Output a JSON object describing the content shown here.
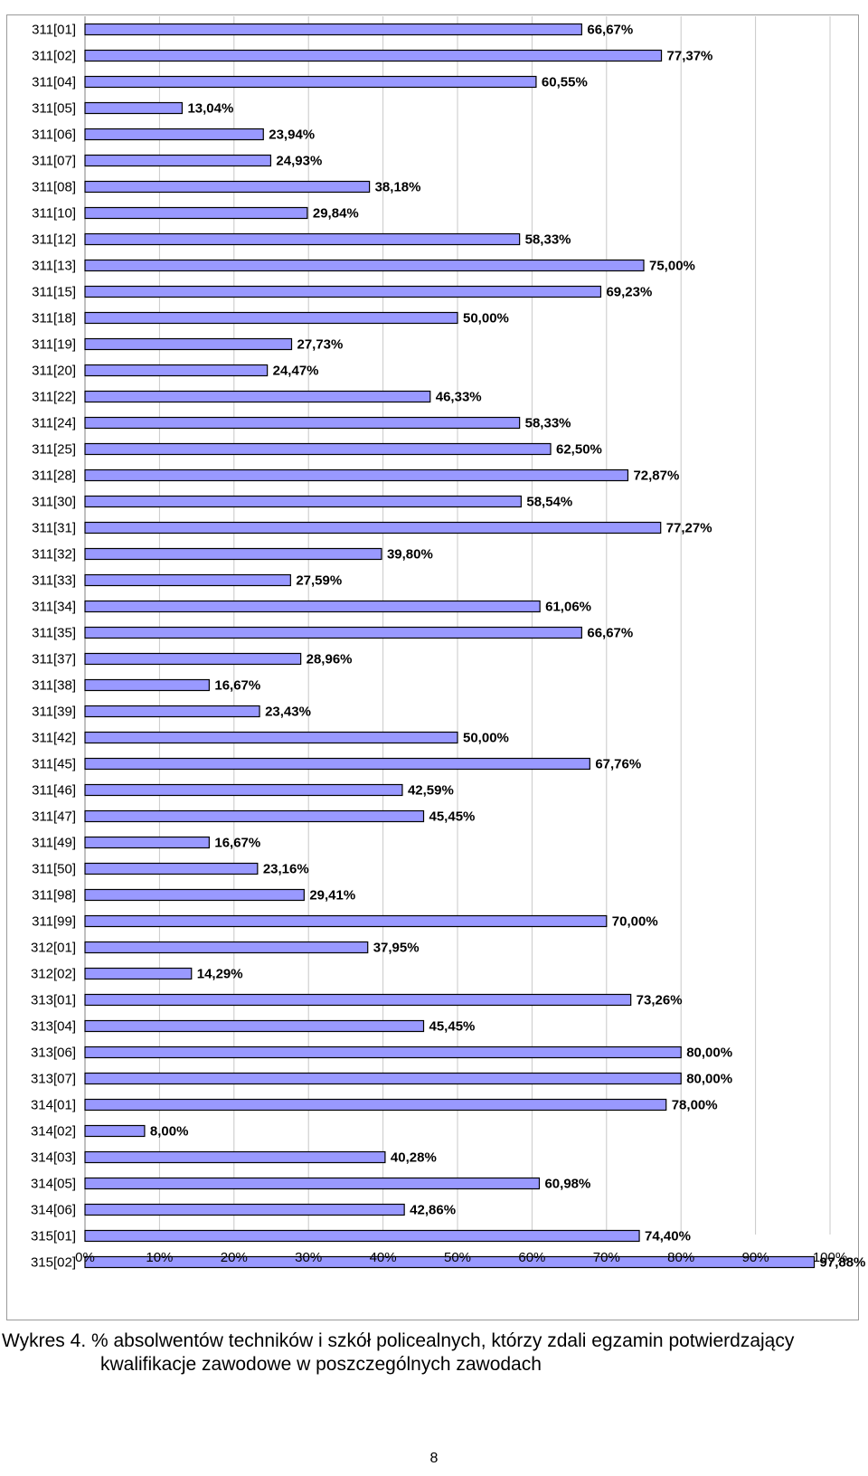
{
  "chart_data": {
    "type": "bar",
    "orientation": "horizontal",
    "title": "",
    "xlabel": "",
    "ylabel": "",
    "xlim": [
      0,
      100
    ],
    "x_ticks": [
      "0%",
      "10%",
      "20%",
      "30%",
      "40%",
      "50%",
      "60%",
      "70%",
      "80%",
      "90%",
      "100%"
    ],
    "grid": true,
    "bar_color": "#9999ff",
    "bar_border_color": "#000000",
    "categories": [
      "311[01]",
      "311[02]",
      "311[04]",
      "311[05]",
      "311[06]",
      "311[07]",
      "311[08]",
      "311[10]",
      "311[12]",
      "311[13]",
      "311[15]",
      "311[18]",
      "311[19]",
      "311[20]",
      "311[22]",
      "311[24]",
      "311[25]",
      "311[28]",
      "311[30]",
      "311[31]",
      "311[32]",
      "311[33]",
      "311[34]",
      "311[35]",
      "311[37]",
      "311[38]",
      "311[39]",
      "311[42]",
      "311[45]",
      "311[46]",
      "311[47]",
      "311[49]",
      "311[50]",
      "311[98]",
      "311[99]",
      "312[01]",
      "312[02]",
      "313[01]",
      "313[04]",
      "313[06]",
      "313[07]",
      "314[01]",
      "314[02]",
      "314[03]",
      "314[05]",
      "314[06]",
      "315[01]",
      "315[02]"
    ],
    "values": [
      66.67,
      77.37,
      60.55,
      13.04,
      23.94,
      24.93,
      38.18,
      29.84,
      58.33,
      75.0,
      69.23,
      50.0,
      27.73,
      24.47,
      46.33,
      58.33,
      62.5,
      72.87,
      58.54,
      77.27,
      39.8,
      27.59,
      61.06,
      66.67,
      28.96,
      16.67,
      23.43,
      50.0,
      67.76,
      42.59,
      45.45,
      16.67,
      23.16,
      29.41,
      70.0,
      37.95,
      14.29,
      73.26,
      45.45,
      80.0,
      80.0,
      78.0,
      8.0,
      40.28,
      60.98,
      42.86,
      74.4,
      97.88
    ],
    "value_labels": [
      "66,67%",
      "77,37%",
      "60,55%",
      "13,04%",
      "23,94%",
      "24,93%",
      "38,18%",
      "29,84%",
      "58,33%",
      "75,00%",
      "69,23%",
      "50,00%",
      "27,73%",
      "24,47%",
      "46,33%",
      "58,33%",
      "62,50%",
      "72,87%",
      "58,54%",
      "77,27%",
      "39,80%",
      "27,59%",
      "61,06%",
      "66,67%",
      "28,96%",
      "16,67%",
      "23,43%",
      "50,00%",
      "67,76%",
      "42,59%",
      "45,45%",
      "16,67%",
      "23,16%",
      "29,41%",
      "70,00%",
      "37,95%",
      "14,29%",
      "73,26%",
      "45,45%",
      "80,00%",
      "80,00%",
      "78,00%",
      "8,00%",
      "40,28%",
      "60,98%",
      "42,86%",
      "74,40%",
      "97,88%"
    ]
  },
  "caption": {
    "line1": "Wykres 4. % absolwentów techników i szkół policealnych, którzy zdali egzamin potwierdzający",
    "line2": "kwalifikacje zawodowe w poszczególnych zawodach"
  },
  "page_number": "8"
}
